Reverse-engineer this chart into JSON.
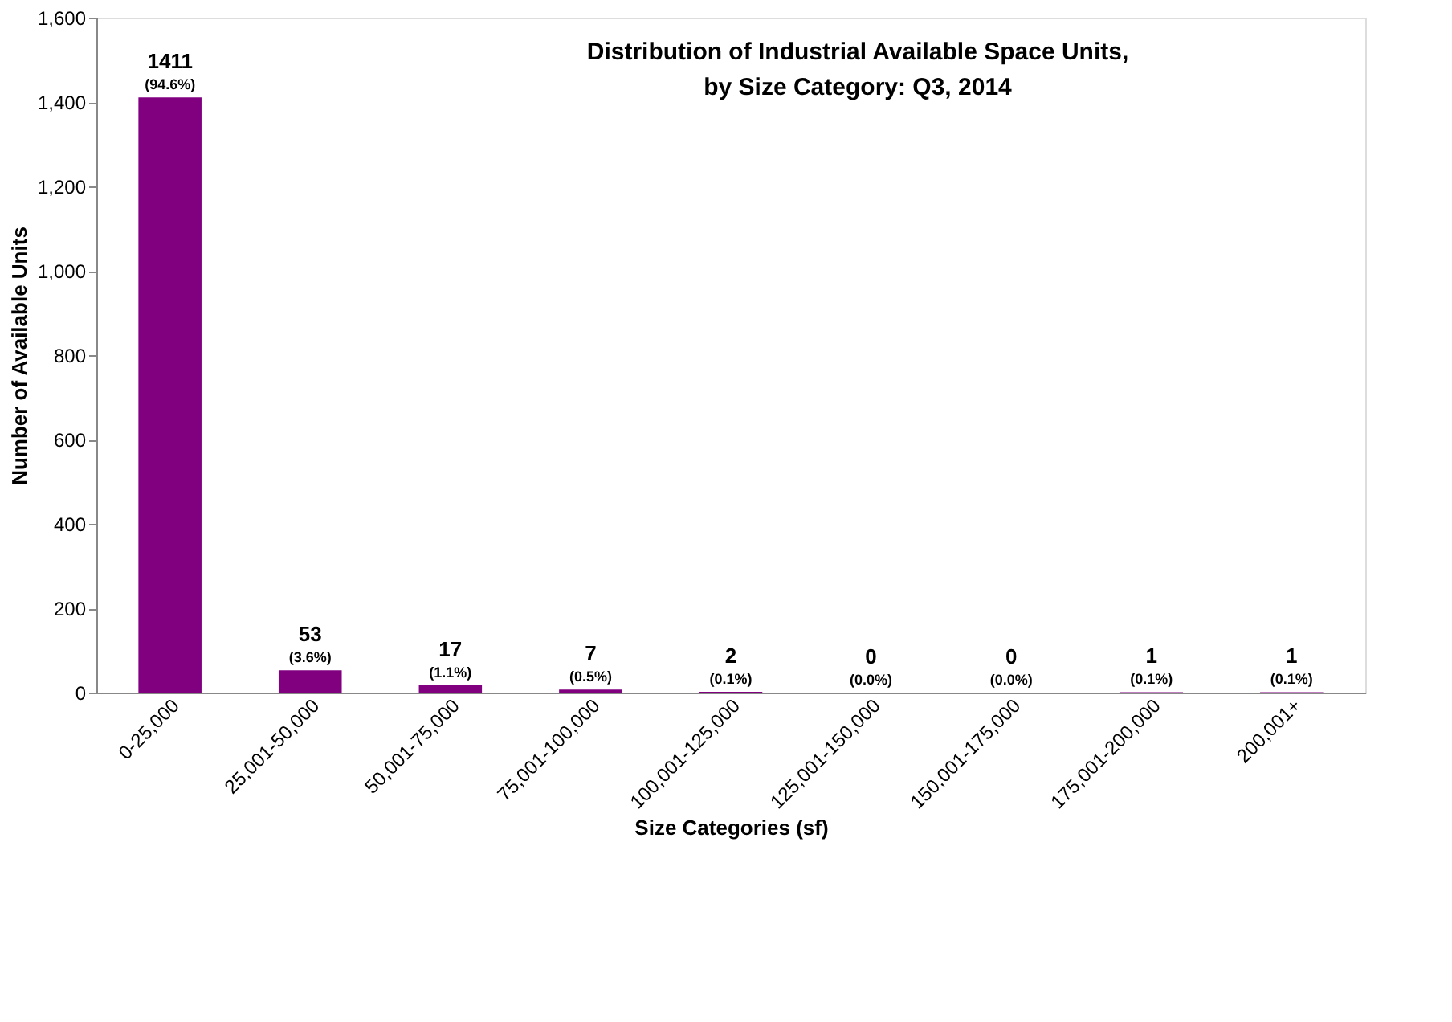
{
  "chart_data": {
    "type": "bar",
    "title": "Distribution of Industrial Available Space Units,\nby Size Category: Q3, 2014",
    "xlabel": "Size Categories (sf)",
    "ylabel": "Number of Available Units",
    "categories": [
      "0-25,000",
      "25,001-50,000",
      "50,001-75,000",
      "75,001-100,000",
      "100,001-125,000",
      "125,001-150,000",
      "150,001-175,000",
      "175,001-200,000",
      "200,001+"
    ],
    "values": [
      1411,
      53,
      17,
      7,
      2,
      0,
      0,
      1,
      1
    ],
    "value_labels": [
      "1411 (94.6%)",
      "53 (3.6%)",
      "17 (1.1%)",
      "7 (0.5%)",
      "2 (0.1%)",
      "0 (0.0%)",
      "0 (0.0%)",
      "1 (0.1%)",
      "1 (0.1%)"
    ],
    "color": "#800080",
    "ylim": [
      0,
      1600
    ],
    "yticks": [
      {
        "value": 0,
        "label": "0"
      },
      {
        "value": 200,
        "label": "200"
      },
      {
        "value": 400,
        "label": "400"
      },
      {
        "value": 600,
        "label": "600"
      },
      {
        "value": 800,
        "label": "800"
      },
      {
        "value": 1000,
        "label": "1,000"
      },
      {
        "value": 1200,
        "label": "1,200"
      },
      {
        "value": 1400,
        "label": "1,400"
      },
      {
        "value": 1600,
        "label": "1,600"
      }
    ],
    "grid": false
  }
}
